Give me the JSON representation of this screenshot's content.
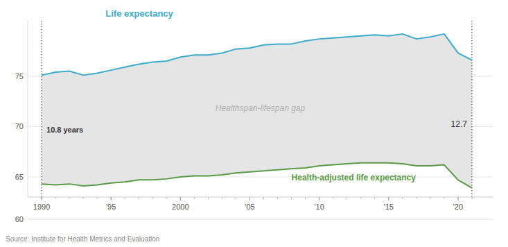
{
  "chart_data": {
    "type": "line",
    "x": [
      1990,
      1991,
      1992,
      1993,
      1994,
      1995,
      1996,
      1997,
      1998,
      1999,
      2000,
      2001,
      2002,
      2003,
      2004,
      2005,
      2006,
      2007,
      2008,
      2009,
      2010,
      2011,
      2012,
      2013,
      2014,
      2015,
      2016,
      2017,
      2018,
      2019,
      2020,
      2021
    ],
    "series": [
      {
        "name": "Life expectancy",
        "color": "#3aabcb",
        "values": [
          75.1,
          75.4,
          75.5,
          75.1,
          75.3,
          75.6,
          75.9,
          76.2,
          76.4,
          76.5,
          76.9,
          77.1,
          77.1,
          77.3,
          77.7,
          77.8,
          78.1,
          78.2,
          78.2,
          78.5,
          78.7,
          78.8,
          78.9,
          79.0,
          79.1,
          79.0,
          79.2,
          78.7,
          78.9,
          79.2,
          77.3,
          76.6
        ]
      },
      {
        "name": "Health-adjusted life expectancy",
        "color": "#5a9a45",
        "values": [
          64.3,
          64.2,
          64.3,
          64.1,
          64.2,
          64.4,
          64.5,
          64.7,
          64.7,
          64.8,
          65.0,
          65.1,
          65.1,
          65.2,
          65.4,
          65.5,
          65.6,
          65.7,
          65.8,
          65.9,
          66.1,
          66.2,
          66.3,
          66.4,
          66.4,
          66.4,
          66.3,
          66.1,
          66.1,
          66.2,
          64.7,
          63.9
        ]
      }
    ],
    "xlim": [
      1989.0,
      2022.5
    ],
    "xticks": [
      1990,
      {
        "value": 1995,
        "label": "'95"
      },
      2000,
      {
        "value": 2005,
        "label": "'05"
      },
      {
        "value": 2010,
        "label": "'10"
      },
      {
        "value": 2015,
        "label": "'15"
      },
      {
        "value": 2020,
        "label": "'20"
      }
    ],
    "ylim": [
      63.0,
      80.5
    ],
    "yticks": [
      65,
      70,
      75
    ],
    "grid": true,
    "annotations": [
      {
        "text": "Healthspan-lifespan gap"
      },
      {
        "text": "10.8 years"
      },
      {
        "text": "12.7"
      },
      {
        "text": "60"
      }
    ],
    "source": "Source: Institute for Health Metrics and Evaluation"
  }
}
